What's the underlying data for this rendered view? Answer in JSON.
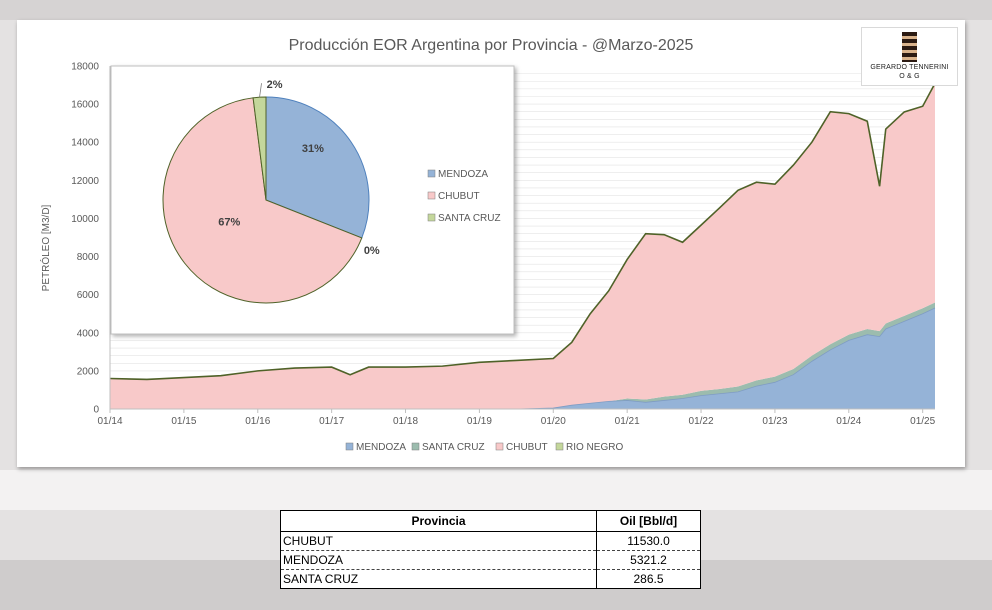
{
  "colors": {
    "mendoza": "#95b3d7",
    "santa_cruz": "#9cbcae",
    "chubut": "#f8c9c9",
    "rio_negro": "#c4d79b",
    "total_line": "#4f6228"
  },
  "logo": {
    "line1": "GERARDO TENNERINI",
    "line2": "O & G"
  },
  "chart_data": [
    {
      "type": "area",
      "title": "Producción EOR Argentina por Provincia - @Marzo-2025",
      "xlabel": "",
      "ylabel": "PETRÓLEO [M3/D]",
      "ylim": [
        0,
        18000
      ],
      "yticks": [
        "0",
        "2000",
        "4000",
        "6000",
        "8000",
        "10000",
        "12000",
        "14000",
        "16000",
        "18000"
      ],
      "xticks": [
        "01/14",
        "01/15",
        "01/16",
        "01/17",
        "01/18",
        "01/19",
        "01/20",
        "01/21",
        "01/22",
        "01/23",
        "01/24",
        "01/25"
      ],
      "xlim": [
        "2014-01",
        "2025-03"
      ],
      "stacked": true,
      "grid": true,
      "legend_position": "bottom",
      "legend": [
        "MENDOZA",
        "SANTA CRUZ",
        "CHUBUT",
        "RIO NEGRO"
      ],
      "x": [
        "2014-01",
        "2014-07",
        "2015-01",
        "2015-07",
        "2016-01",
        "2016-07",
        "2017-01",
        "2017-04",
        "2017-07",
        "2018-01",
        "2018-07",
        "2019-01",
        "2019-07",
        "2020-01",
        "2020-04",
        "2020-07",
        "2020-10",
        "2021-01",
        "2021-04",
        "2021-07",
        "2021-10",
        "2022-01",
        "2022-04",
        "2022-07",
        "2022-10",
        "2023-01",
        "2023-04",
        "2023-07",
        "2023-10",
        "2024-01",
        "2024-04",
        "2024-06",
        "2024-07",
        "2024-10",
        "2025-01",
        "2025-03"
      ],
      "series": [
        {
          "name": "MENDOZA",
          "values": [
            0,
            0,
            0,
            0,
            0,
            0,
            0,
            0,
            0,
            0,
            0,
            0,
            0,
            50,
            200,
            300,
            400,
            450,
            350,
            450,
            550,
            700,
            800,
            900,
            1200,
            1400,
            1800,
            2500,
            3100,
            3600,
            3900,
            3800,
            4200,
            4600,
            5000,
            5300
          ]
        },
        {
          "name": "SANTA CRUZ",
          "values": [
            0,
            0,
            0,
            0,
            0,
            0,
            0,
            0,
            0,
            0,
            0,
            0,
            0,
            0,
            0,
            0,
            0,
            100,
            150,
            200,
            200,
            250,
            250,
            280,
            300,
            300,
            300,
            300,
            300,
            300,
            300,
            290,
            290,
            290,
            290,
            290
          ]
        },
        {
          "name": "CHUBUT",
          "values": [
            1600,
            1550,
            1650,
            1750,
            2000,
            2150,
            2200,
            1800,
            2200,
            2200,
            2250,
            2450,
            2550,
            2600,
            3300,
            4700,
            5800,
            7300,
            8700,
            8500,
            8000,
            8700,
            9500,
            10300,
            10400,
            10100,
            10700,
            11200,
            12200,
            11600,
            10900,
            7600,
            10200,
            10700,
            10600,
            11500
          ]
        },
        {
          "name": "RIO NEGRO",
          "values": [
            0,
            0,
            0,
            0,
            0,
            0,
            0,
            0,
            0,
            0,
            0,
            0,
            0,
            0,
            0,
            0,
            0,
            0,
            0,
            0,
            0,
            0,
            0,
            0,
            0,
            0,
            0,
            0,
            0,
            0,
            0,
            0,
            0,
            0,
            0,
            0
          ]
        }
      ]
    },
    {
      "type": "pie",
      "legend": [
        "MENDOZA",
        "CHUBUT",
        "SANTA CRUZ"
      ],
      "values": [
        31,
        67,
        2
      ],
      "labels": [
        "31%",
        "67%",
        "2%"
      ],
      "extra_label": "0%"
    }
  ],
  "table": {
    "headers": [
      "Provincia",
      "Oil [Bbl/d]"
    ],
    "rows": [
      [
        "CHUBUT",
        "11530.0"
      ],
      [
        "MENDOZA",
        "5321.2"
      ],
      [
        "SANTA CRUZ",
        "286.5"
      ]
    ]
  }
}
